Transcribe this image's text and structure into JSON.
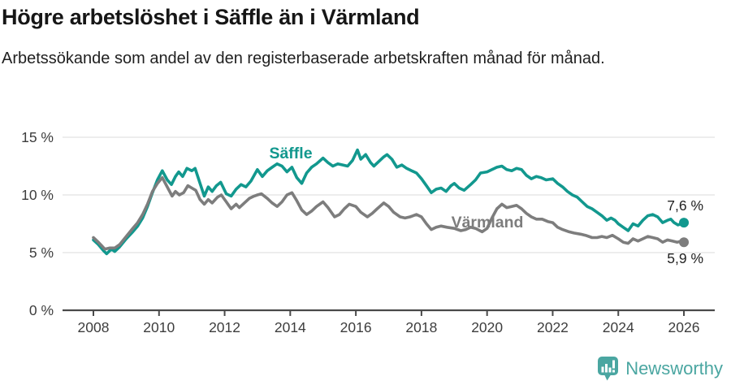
{
  "header": {
    "title": "Högre arbetslöshet i Säffle än i Värmland",
    "subtitle": "Arbetssökande som andel av den registerbaserade arbetskraften månad för månad."
  },
  "chart_data": {
    "type": "line",
    "title": "Högre arbetslöshet i Säffle än i Värmland",
    "xlabel": "",
    "ylabel": "",
    "grid": "horizontal",
    "legend_position": "inline-labels",
    "x_axis": {
      "unit": "year",
      "range": [
        2007.1,
        2027.3
      ],
      "ticks": [
        2008,
        2010,
        2012,
        2014,
        2016,
        2018,
        2020,
        2022,
        2024,
        2026
      ]
    },
    "y_axis": {
      "unit": "%",
      "range": [
        0,
        16.5
      ],
      "ticks": [
        0,
        5,
        10,
        15
      ],
      "tick_labels": [
        "0 %",
        "5 %",
        "10 %",
        "15 %"
      ]
    },
    "colors": {
      "saffle": "#12988e",
      "varmland": "#7d7d7d",
      "gridline": "#e2e2e2",
      "axis": "#4a4a4a",
      "axis_text": "#3d3d3d",
      "annotation_text": "#222222"
    },
    "series": [
      {
        "name": "Säffle",
        "color": "#12988e",
        "end_label": "7,6 %",
        "end_value": 7.6,
        "points": [
          [
            2008.0,
            6.1
          ],
          [
            2008.15,
            5.7
          ],
          [
            2008.3,
            5.2
          ],
          [
            2008.4,
            4.9
          ],
          [
            2008.55,
            5.3
          ],
          [
            2008.65,
            5.1
          ],
          [
            2008.8,
            5.5
          ],
          [
            2009.0,
            6.2
          ],
          [
            2009.2,
            6.8
          ],
          [
            2009.35,
            7.3
          ],
          [
            2009.5,
            8.0
          ],
          [
            2009.65,
            9.0
          ],
          [
            2009.8,
            10.2
          ],
          [
            2009.95,
            11.3
          ],
          [
            2010.1,
            12.1
          ],
          [
            2010.25,
            11.3
          ],
          [
            2010.38,
            10.9
          ],
          [
            2010.5,
            11.6
          ],
          [
            2010.6,
            12.0
          ],
          [
            2010.72,
            11.6
          ],
          [
            2010.85,
            12.3
          ],
          [
            2011.0,
            12.1
          ],
          [
            2011.1,
            12.3
          ],
          [
            2011.25,
            11.0
          ],
          [
            2011.38,
            9.9
          ],
          [
            2011.5,
            10.7
          ],
          [
            2011.62,
            10.3
          ],
          [
            2011.75,
            10.8
          ],
          [
            2011.88,
            11.1
          ],
          [
            2012.05,
            10.1
          ],
          [
            2012.2,
            9.9
          ],
          [
            2012.35,
            10.5
          ],
          [
            2012.5,
            10.9
          ],
          [
            2012.65,
            10.7
          ],
          [
            2012.8,
            11.2
          ],
          [
            2013.0,
            12.2
          ],
          [
            2013.15,
            11.6
          ],
          [
            2013.3,
            12.1
          ],
          [
            2013.45,
            12.4
          ],
          [
            2013.6,
            12.7
          ],
          [
            2013.75,
            12.5
          ],
          [
            2013.9,
            12.0
          ],
          [
            2014.05,
            12.4
          ],
          [
            2014.2,
            11.5
          ],
          [
            2014.35,
            11.0
          ],
          [
            2014.5,
            11.9
          ],
          [
            2014.65,
            12.4
          ],
          [
            2014.8,
            12.7
          ],
          [
            2015.0,
            13.2
          ],
          [
            2015.15,
            12.8
          ],
          [
            2015.3,
            12.5
          ],
          [
            2015.45,
            12.7
          ],
          [
            2015.6,
            12.6
          ],
          [
            2015.75,
            12.5
          ],
          [
            2015.9,
            13.0
          ],
          [
            2016.05,
            13.9
          ],
          [
            2016.15,
            13.1
          ],
          [
            2016.3,
            13.5
          ],
          [
            2016.45,
            12.8
          ],
          [
            2016.55,
            12.5
          ],
          [
            2016.7,
            12.9
          ],
          [
            2016.85,
            13.3
          ],
          [
            2016.95,
            13.5
          ],
          [
            2017.1,
            13.1
          ],
          [
            2017.25,
            12.4
          ],
          [
            2017.4,
            12.6
          ],
          [
            2017.55,
            12.3
          ],
          [
            2017.7,
            12.1
          ],
          [
            2017.85,
            11.9
          ],
          [
            2018.0,
            11.4
          ],
          [
            2018.15,
            10.8
          ],
          [
            2018.3,
            10.2
          ],
          [
            2018.45,
            10.5
          ],
          [
            2018.6,
            10.6
          ],
          [
            2018.75,
            10.3
          ],
          [
            2018.9,
            10.8
          ],
          [
            2019.0,
            11.0
          ],
          [
            2019.15,
            10.6
          ],
          [
            2019.3,
            10.4
          ],
          [
            2019.5,
            10.9
          ],
          [
            2019.65,
            11.3
          ],
          [
            2019.8,
            11.9
          ],
          [
            2020.0,
            12.0
          ],
          [
            2020.15,
            12.2
          ],
          [
            2020.3,
            12.4
          ],
          [
            2020.45,
            12.5
          ],
          [
            2020.6,
            12.2
          ],
          [
            2020.75,
            12.1
          ],
          [
            2020.9,
            12.3
          ],
          [
            2021.05,
            12.2
          ],
          [
            2021.2,
            11.7
          ],
          [
            2021.35,
            11.4
          ],
          [
            2021.5,
            11.6
          ],
          [
            2021.65,
            11.5
          ],
          [
            2021.8,
            11.3
          ],
          [
            2022.0,
            11.4
          ],
          [
            2022.15,
            11.0
          ],
          [
            2022.3,
            10.7
          ],
          [
            2022.45,
            10.3
          ],
          [
            2022.6,
            10.0
          ],
          [
            2022.75,
            9.8
          ],
          [
            2022.9,
            9.4
          ],
          [
            2023.05,
            9.0
          ],
          [
            2023.2,
            8.8
          ],
          [
            2023.35,
            8.5
          ],
          [
            2023.5,
            8.2
          ],
          [
            2023.65,
            7.8
          ],
          [
            2023.78,
            8.0
          ],
          [
            2023.9,
            7.8
          ],
          [
            2024.0,
            7.5
          ],
          [
            2024.15,
            7.2
          ],
          [
            2024.3,
            6.9
          ],
          [
            2024.45,
            7.5
          ],
          [
            2024.6,
            7.3
          ],
          [
            2024.75,
            7.8
          ],
          [
            2024.9,
            8.2
          ],
          [
            2025.05,
            8.3
          ],
          [
            2025.2,
            8.1
          ],
          [
            2025.35,
            7.6
          ],
          [
            2025.5,
            7.8
          ],
          [
            2025.6,
            7.9
          ],
          [
            2025.7,
            7.6
          ],
          [
            2025.82,
            7.4
          ],
          [
            2025.92,
            7.5
          ],
          [
            2026.0,
            7.6
          ]
        ]
      },
      {
        "name": "Värmland",
        "color": "#7d7d7d",
        "end_label": "5,9 %",
        "end_value": 5.9,
        "points": [
          [
            2008.0,
            6.3
          ],
          [
            2008.15,
            5.9
          ],
          [
            2008.35,
            5.3
          ],
          [
            2008.5,
            5.4
          ],
          [
            2008.65,
            5.4
          ],
          [
            2008.8,
            5.7
          ],
          [
            2009.0,
            6.4
          ],
          [
            2009.2,
            7.1
          ],
          [
            2009.35,
            7.6
          ],
          [
            2009.5,
            8.3
          ],
          [
            2009.65,
            9.2
          ],
          [
            2009.8,
            10.3
          ],
          [
            2009.95,
            11.0
          ],
          [
            2010.1,
            11.5
          ],
          [
            2010.25,
            10.7
          ],
          [
            2010.4,
            9.9
          ],
          [
            2010.5,
            10.3
          ],
          [
            2010.62,
            10.0
          ],
          [
            2010.75,
            10.2
          ],
          [
            2010.88,
            10.8
          ],
          [
            2011.0,
            10.6
          ],
          [
            2011.12,
            10.4
          ],
          [
            2011.25,
            9.6
          ],
          [
            2011.38,
            9.2
          ],
          [
            2011.5,
            9.6
          ],
          [
            2011.62,
            9.3
          ],
          [
            2011.78,
            9.8
          ],
          [
            2011.9,
            10.0
          ],
          [
            2012.05,
            9.4
          ],
          [
            2012.2,
            8.8
          ],
          [
            2012.35,
            9.2
          ],
          [
            2012.45,
            8.9
          ],
          [
            2012.6,
            9.3
          ],
          [
            2012.75,
            9.7
          ],
          [
            2012.9,
            9.9
          ],
          [
            2013.0,
            10.0
          ],
          [
            2013.12,
            10.1
          ],
          [
            2013.3,
            9.7
          ],
          [
            2013.45,
            9.3
          ],
          [
            2013.6,
            9.0
          ],
          [
            2013.75,
            9.4
          ],
          [
            2013.9,
            10.0
          ],
          [
            2014.05,
            10.2
          ],
          [
            2014.2,
            9.5
          ],
          [
            2014.35,
            8.7
          ],
          [
            2014.5,
            8.3
          ],
          [
            2014.65,
            8.6
          ],
          [
            2014.8,
            9.0
          ],
          [
            2015.0,
            9.4
          ],
          [
            2015.15,
            8.9
          ],
          [
            2015.35,
            8.1
          ],
          [
            2015.5,
            8.3
          ],
          [
            2015.65,
            8.8
          ],
          [
            2015.8,
            9.2
          ],
          [
            2016.0,
            9.0
          ],
          [
            2016.15,
            8.5
          ],
          [
            2016.35,
            8.1
          ],
          [
            2016.5,
            8.4
          ],
          [
            2016.65,
            8.8
          ],
          [
            2016.85,
            9.3
          ],
          [
            2017.0,
            9.0
          ],
          [
            2017.15,
            8.5
          ],
          [
            2017.35,
            8.1
          ],
          [
            2017.5,
            8.0
          ],
          [
            2017.65,
            8.1
          ],
          [
            2017.85,
            8.3
          ],
          [
            2018.0,
            8.1
          ],
          [
            2018.15,
            7.5
          ],
          [
            2018.3,
            7.0
          ],
          [
            2018.45,
            7.2
          ],
          [
            2018.6,
            7.3
          ],
          [
            2018.78,
            7.2
          ],
          [
            2019.0,
            7.1
          ],
          [
            2019.2,
            6.9
          ],
          [
            2019.35,
            7.0
          ],
          [
            2019.5,
            7.2
          ],
          [
            2019.65,
            7.1
          ],
          [
            2019.85,
            6.8
          ],
          [
            2020.0,
            7.1
          ],
          [
            2020.15,
            8.0
          ],
          [
            2020.3,
            8.8
          ],
          [
            2020.45,
            9.2
          ],
          [
            2020.6,
            8.9
          ],
          [
            2020.75,
            9.0
          ],
          [
            2020.9,
            9.1
          ],
          [
            2021.05,
            8.8
          ],
          [
            2021.2,
            8.4
          ],
          [
            2021.35,
            8.1
          ],
          [
            2021.5,
            7.9
          ],
          [
            2021.68,
            7.9
          ],
          [
            2021.85,
            7.7
          ],
          [
            2022.0,
            7.6
          ],
          [
            2022.15,
            7.2
          ],
          [
            2022.3,
            7.0
          ],
          [
            2022.5,
            6.8
          ],
          [
            2022.65,
            6.7
          ],
          [
            2022.85,
            6.6
          ],
          [
            2023.0,
            6.5
          ],
          [
            2023.2,
            6.3
          ],
          [
            2023.35,
            6.3
          ],
          [
            2023.5,
            6.4
          ],
          [
            2023.65,
            6.3
          ],
          [
            2023.82,
            6.5
          ],
          [
            2024.0,
            6.2
          ],
          [
            2024.15,
            5.9
          ],
          [
            2024.3,
            5.8
          ],
          [
            2024.45,
            6.2
          ],
          [
            2024.6,
            6.0
          ],
          [
            2024.75,
            6.2
          ],
          [
            2024.9,
            6.4
          ],
          [
            2025.05,
            6.3
          ],
          [
            2025.2,
            6.2
          ],
          [
            2025.35,
            5.9
          ],
          [
            2025.5,
            6.1
          ],
          [
            2025.65,
            6.0
          ],
          [
            2025.8,
            5.9
          ],
          [
            2025.92,
            6.0
          ],
          [
            2026.0,
            5.9
          ]
        ]
      }
    ]
  },
  "footer": {
    "brand": "Newsworthy",
    "logo_icon": "bar-chart-speech-bubble-icon",
    "brand_color": "#4aa6a1"
  }
}
